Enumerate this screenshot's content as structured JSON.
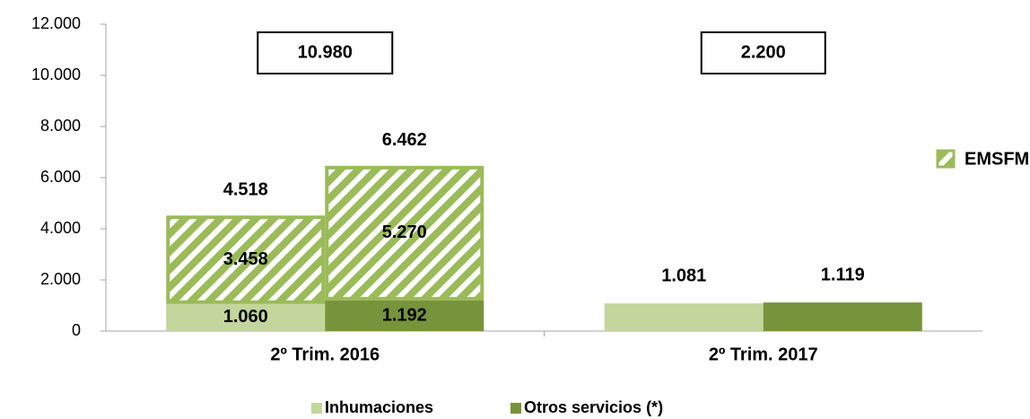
{
  "chart_data": {
    "type": "bar",
    "categories": [
      "2º Trim. 2016",
      "2º Trim. 2017"
    ],
    "series": [
      {
        "name": "Inhumaciones",
        "color": "#c3d69b",
        "values": [
          1060,
          1081
        ],
        "value_labels": [
          "1.060",
          "1.081"
        ]
      },
      {
        "name": "Otros servicios (*)",
        "color": "#77933c",
        "values": [
          1192,
          1119
        ],
        "value_labels": [
          "1.192",
          "1.119"
        ]
      },
      {
        "name": "EMSFM",
        "color": "#9bbb59",
        "pattern": "hatch",
        "stacked_on": [
          0,
          1
        ],
        "values": [
          [
            3458,
            5270
          ],
          [
            null,
            null
          ]
        ],
        "value_labels": [
          [
            "3.458",
            "5.270"
          ],
          [
            null,
            null
          ]
        ]
      }
    ],
    "totals": [
      [
        4518,
        6462
      ],
      [
        null,
        null
      ]
    ],
    "total_labels": [
      [
        "4.518",
        "6.462"
      ],
      [
        null,
        null
      ]
    ],
    "group_totals": [
      10980,
      2200
    ],
    "group_total_labels": [
      "10.980",
      "2.200"
    ],
    "ylim": [
      0,
      12000
    ],
    "yticks": [
      0,
      {
        "value": 2000,
        "label": "2.000"
      },
      {
        "value": 4000,
        "label": "4.000"
      },
      {
        "value": 6000,
        "label": "6.000"
      },
      {
        "value": 8000,
        "label": "8.000"
      },
      {
        "value": 10000,
        "label": "10.000"
      },
      {
        "value": 12000,
        "label": "12.000"
      }
    ],
    "grid": false
  }
}
